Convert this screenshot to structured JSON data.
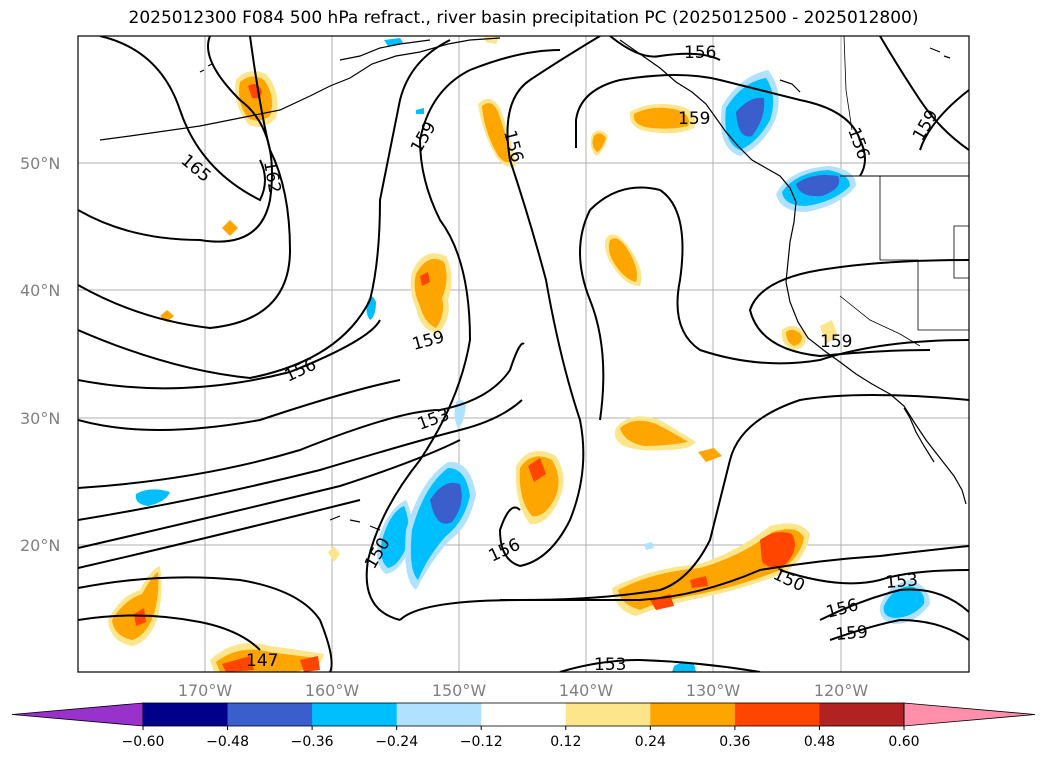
{
  "title": "2025012300 F084 500 hPa refract., river basin precipitation PC (2025012500 - 2025012800)",
  "map": {
    "lat_ticks": [
      "50°N",
      "40°N",
      "30°N",
      "20°N"
    ],
    "lon_ticks": [
      "170°W",
      "160°W",
      "150°W",
      "140°W",
      "130°W",
      "120°W"
    ],
    "contour_labels": [
      "165",
      "162",
      "159",
      "156",
      "159",
      "156",
      "159",
      "156",
      "159",
      "153",
      "156",
      "150",
      "156",
      "150",
      "153",
      "156",
      "159",
      "147",
      "153",
      "159"
    ],
    "colors": {
      "contour": "#000000",
      "coast": "#000000",
      "grid": "#b0b0b0"
    }
  },
  "colorbar": {
    "ticks": [
      "−0.60",
      "−0.48",
      "−0.36",
      "−0.24",
      "−0.12",
      "0.12",
      "0.24",
      "0.36",
      "0.48",
      "0.60"
    ],
    "colors": [
      "#9932cc",
      "#00008b",
      "#3a5fcd",
      "#00bfff",
      "#b0e2ff",
      "#ffffff",
      "#fce58a",
      "#ffa500",
      "#ff4500",
      "#b22222",
      "#ff8fab"
    ]
  }
}
